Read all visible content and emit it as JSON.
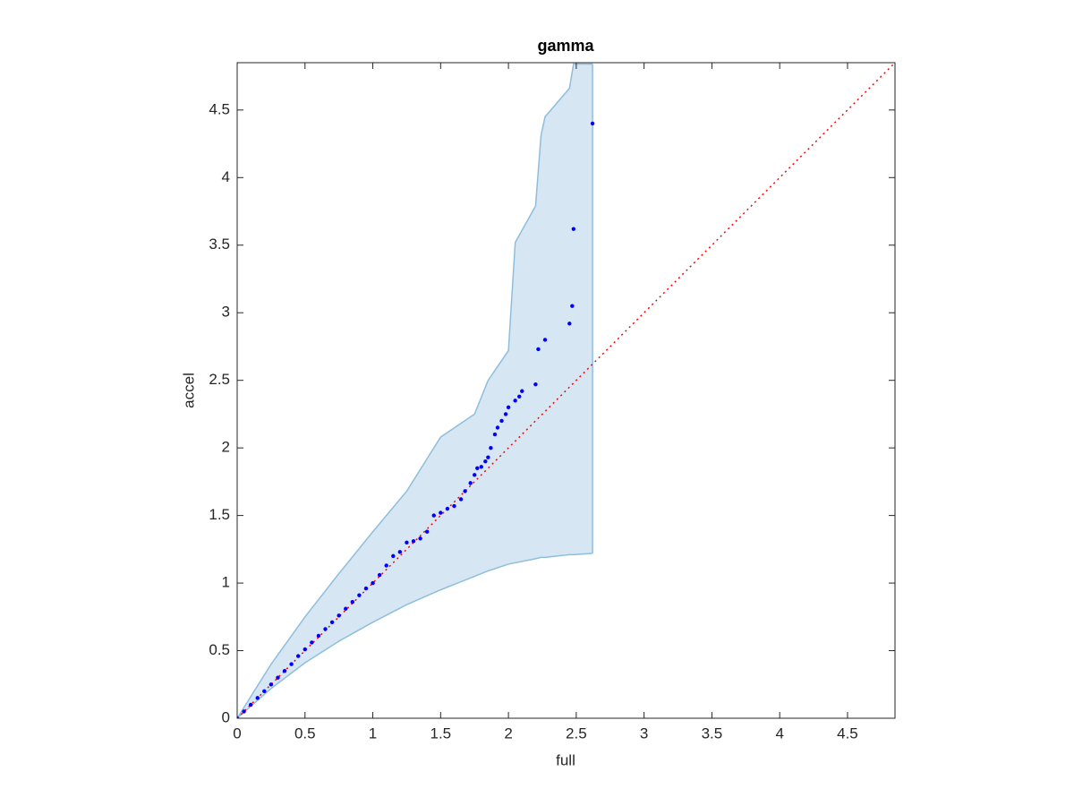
{
  "chart_data": {
    "type": "scatter",
    "title": "gamma",
    "xlabel": "full",
    "ylabel": "accel",
    "xlim": [
      0,
      4.85
    ],
    "ylim": [
      0,
      4.85
    ],
    "xticks": [
      0,
      0.5,
      1,
      1.5,
      2,
      2.5,
      3,
      3.5,
      4,
      4.5
    ],
    "yticks": [
      0,
      0.5,
      1,
      1.5,
      2,
      2.5,
      3,
      3.5,
      4,
      4.5
    ],
    "band": {
      "color": "#d6e6f3",
      "edge_color": "#8fbedd",
      "x": [
        0,
        0.25,
        0.5,
        0.75,
        1.0,
        1.25,
        1.5,
        1.75,
        1.85,
        2.0,
        2.05,
        2.2,
        2.24,
        2.27,
        2.45,
        2.48,
        2.62
      ],
      "upper": [
        0,
        0.4,
        0.75,
        1.07,
        1.38,
        1.68,
        2.08,
        2.25,
        2.5,
        2.72,
        3.52,
        3.79,
        4.31,
        4.45,
        4.66,
        4.84,
        4.84
      ],
      "lower": [
        0,
        0.22,
        0.41,
        0.57,
        0.71,
        0.84,
        0.95,
        1.05,
        1.09,
        1.14,
        1.15,
        1.18,
        1.19,
        1.19,
        1.21,
        1.21,
        1.22
      ]
    },
    "reference": {
      "color": "#ff0000",
      "x": [
        0,
        4.85
      ],
      "values": [
        0,
        4.85
      ]
    },
    "points": {
      "color": "#0000ff",
      "x": [
        0,
        0.05,
        0.1,
        0.15,
        0.2,
        0.25,
        0.3,
        0.35,
        0.4,
        0.45,
        0.5,
        0.55,
        0.6,
        0.65,
        0.7,
        0.75,
        0.8,
        0.85,
        0.9,
        0.95,
        1.0,
        1.05,
        1.1,
        1.15,
        1.2,
        1.25,
        1.3,
        1.35,
        1.4,
        1.45,
        1.5,
        1.55,
        1.6,
        1.65,
        1.68,
        1.72,
        1.75,
        1.77,
        1.8,
        1.83,
        1.85,
        1.87,
        1.9,
        1.92,
        1.95,
        1.98,
        2.0,
        2.05,
        2.08,
        2.1,
        2.2,
        2.22,
        2.27,
        2.45,
        2.47,
        2.48,
        2.62
      ],
      "values": [
        0,
        0.05,
        0.1,
        0.15,
        0.2,
        0.25,
        0.3,
        0.35,
        0.4,
        0.46,
        0.51,
        0.56,
        0.61,
        0.66,
        0.71,
        0.76,
        0.81,
        0.86,
        0.91,
        0.96,
        1.0,
        1.06,
        1.13,
        1.2,
        1.23,
        1.3,
        1.31,
        1.33,
        1.38,
        1.5,
        1.52,
        1.55,
        1.57,
        1.62,
        1.68,
        1.74,
        1.8,
        1.85,
        1.86,
        1.9,
        1.93,
        2.0,
        2.1,
        2.15,
        2.2,
        2.25,
        2.3,
        2.35,
        2.38,
        2.42,
        2.47,
        2.73,
        2.8,
        2.92,
        3.05,
        3.62,
        4.4
      ]
    }
  }
}
